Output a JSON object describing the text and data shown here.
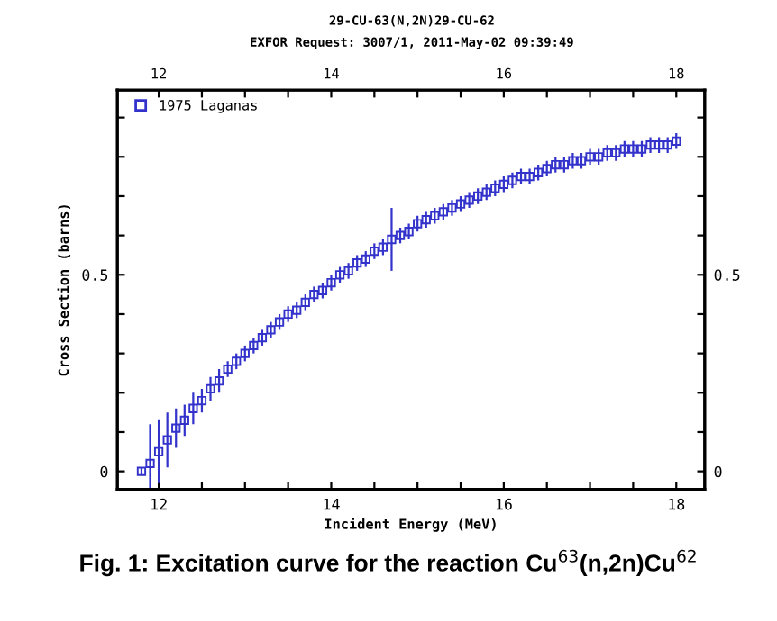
{
  "chart_data": {
    "type": "scatter",
    "title": "29-CU-63(N,2N)29-CU-62",
    "subtitle": "EXFOR Request: 3007/1, 2011-May-02 09:39:49",
    "xlabel": "Incident Energy (MeV)",
    "ylabel": "Cross Section (barns)",
    "annotations": [
      "Fig. 1: Excitation curve for the reaction Cu$^{63}$(n,2n)Cu$^{62}$"
    ],
    "x": [
      11.8,
      11.9,
      12.0,
      12.1,
      12.2,
      12.3,
      12.4,
      12.5,
      12.6,
      12.7,
      12.8,
      12.9,
      13.0,
      13.1,
      13.2,
      13.3,
      13.4,
      13.5,
      13.6,
      13.7,
      13.8,
      13.9,
      14.0,
      14.1,
      14.2,
      14.3,
      14.4,
      14.5,
      14.6,
      14.7,
      14.8,
      14.9,
      15.0,
      15.1,
      15.2,
      15.3,
      15.4,
      15.5,
      15.6,
      15.7,
      15.8,
      15.9,
      16.0,
      16.1,
      16.2,
      16.3,
      16.4,
      16.5,
      16.6,
      16.7,
      16.8,
      16.9,
      17.0,
      17.1,
      17.2,
      17.3,
      17.4,
      17.5,
      17.6,
      17.7,
      17.8,
      17.9,
      18.0
    ],
    "series": [
      {
        "name": "1975 Laganas",
        "color": "#3333cc",
        "values": [
          0.0,
          0.02,
          0.05,
          0.08,
          0.11,
          0.13,
          0.16,
          0.18,
          0.21,
          0.23,
          0.26,
          0.28,
          0.3,
          0.32,
          0.34,
          0.36,
          0.38,
          0.4,
          0.41,
          0.43,
          0.45,
          0.46,
          0.48,
          0.5,
          0.51,
          0.53,
          0.54,
          0.56,
          0.57,
          0.59,
          0.6,
          0.61,
          0.63,
          0.64,
          0.65,
          0.66,
          0.67,
          0.68,
          0.69,
          0.7,
          0.71,
          0.72,
          0.73,
          0.74,
          0.75,
          0.75,
          0.76,
          0.77,
          0.78,
          0.78,
          0.79,
          0.79,
          0.8,
          0.8,
          0.81,
          0.81,
          0.82,
          0.82,
          0.82,
          0.83,
          0.83,
          0.83,
          0.84
        ],
        "errors": [
          0.01,
          0.1,
          0.08,
          0.07,
          0.05,
          0.04,
          0.04,
          0.03,
          0.03,
          0.03,
          0.02,
          0.02,
          0.02,
          0.02,
          0.02,
          0.02,
          0.02,
          0.02,
          0.02,
          0.02,
          0.02,
          0.02,
          0.02,
          0.02,
          0.02,
          0.02,
          0.02,
          0.02,
          0.02,
          0.08,
          0.02,
          0.02,
          0.02,
          0.02,
          0.02,
          0.02,
          0.02,
          0.02,
          0.02,
          0.02,
          0.02,
          0.02,
          0.02,
          0.02,
          0.02,
          0.02,
          0.02,
          0.02,
          0.02,
          0.02,
          0.02,
          0.02,
          0.02,
          0.02,
          0.02,
          0.02,
          0.02,
          0.02,
          0.02,
          0.02,
          0.02,
          0.02,
          0.02
        ]
      }
    ],
    "marker": "square",
    "legend": "top left",
    "grid": false,
    "xlim": [
      11.52,
      18.33
    ],
    "xticks": [
      12,
      {
        "value": 12.5,
        "label": null
      },
      {
        "value": 13,
        "label": null
      },
      {
        "value": 13.5,
        "label": null
      },
      14,
      {
        "value": 14.5,
        "label": null
      },
      {
        "value": 15,
        "label": null
      },
      {
        "value": 15.5,
        "label": null
      },
      16,
      {
        "value": 16.5,
        "label": null
      },
      {
        "value": 17,
        "label": null
      },
      {
        "value": 17.5,
        "label": null
      },
      18
    ],
    "x2lim": [
      11.52,
      18.33
    ],
    "x2ticks": [
      12,
      {
        "value": 12.5,
        "label": null
      },
      {
        "value": 13,
        "label": null
      },
      {
        "value": 13.5,
        "label": null
      },
      14,
      {
        "value": 14.5,
        "label": null
      },
      {
        "value": 15,
        "label": null
      },
      {
        "value": 15.5,
        "label": null
      },
      16,
      {
        "value": 16.5,
        "label": null
      },
      {
        "value": 17,
        "label": null
      },
      {
        "value": 17.5,
        "label": null
      },
      18
    ],
    "ylim": [
      -0.046,
      0.97
    ],
    "yticks": [
      0,
      {
        "value": 0.1,
        "label": null
      },
      {
        "value": 0.2,
        "label": null
      },
      {
        "value": 0.3,
        "label": null
      },
      {
        "value": 0.4,
        "label": null
      },
      0.5,
      {
        "value": 0.6,
        "label": null
      },
      {
        "value": 0.7,
        "label": null
      },
      {
        "value": 0.8,
        "label": null
      },
      {
        "value": 0.9,
        "label": null
      }
    ],
    "y2lim": [
      -0.046,
      0.97
    ],
    "y2ticks": [
      0,
      {
        "value": 0.1,
        "label": null
      },
      {
        "value": 0.2,
        "label": null
      },
      {
        "value": 0.3,
        "label": null
      },
      {
        "value": 0.4,
        "label": null
      },
      0.5,
      {
        "value": 0.6,
        "label": null
      },
      {
        "value": 0.7,
        "label": null
      },
      {
        "value": 0.8,
        "label": null
      },
      {
        "value": 0.9,
        "label": null
      }
    ]
  }
}
